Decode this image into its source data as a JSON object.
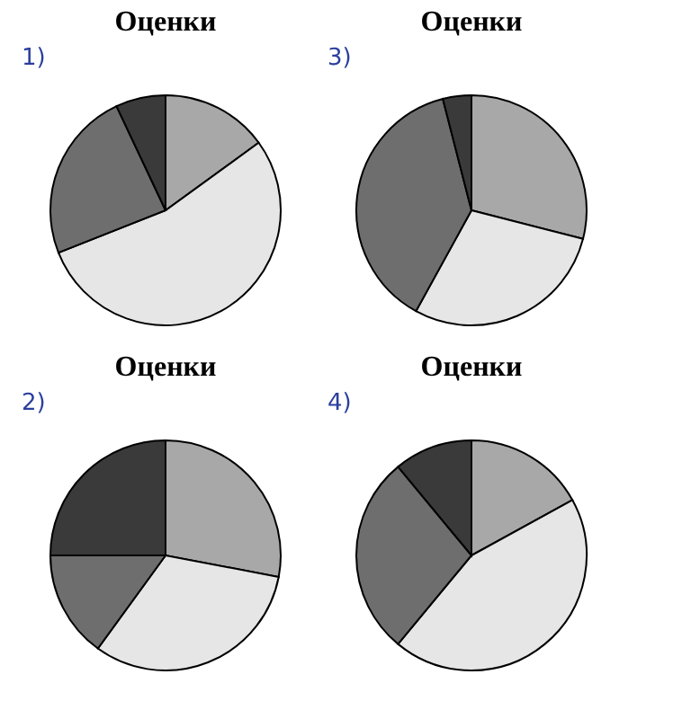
{
  "chart_data": [
    {
      "type": "pie",
      "title": "Оценки",
      "annotations": [
        "1)"
      ],
      "categories": [
        null,
        null,
        null,
        null
      ],
      "values": [
        15,
        54,
        24,
        7
      ],
      "colors": [
        "#a8a8a8",
        "#e6e6e6",
        "#6e6e6e",
        "#3a3a3a"
      ]
    },
    {
      "type": "pie",
      "title": "Оценки",
      "annotations": [
        "3)"
      ],
      "categories": [
        null,
        null,
        null,
        null
      ],
      "values": [
        29,
        29,
        38,
        4
      ],
      "colors": [
        "#a8a8a8",
        "#e6e6e6",
        "#6e6e6e",
        "#3a3a3a"
      ]
    },
    {
      "type": "pie",
      "title": "Оценки",
      "annotations": [
        "2)"
      ],
      "categories": [
        null,
        null,
        null,
        null
      ],
      "values": [
        28,
        32,
        15,
        25
      ],
      "colors": [
        "#a8a8a8",
        "#e6e6e6",
        "#6e6e6e",
        "#3a3a3a"
      ]
    },
    {
      "type": "pie",
      "title": "Оценки",
      "annotations": [
        "4)"
      ],
      "categories": [
        null,
        null,
        null,
        null
      ],
      "values": [
        17,
        44,
        28,
        11
      ],
      "colors": [
        "#a8a8a8",
        "#e6e6e6",
        "#6e6e6e",
        "#3a3a3a"
      ]
    }
  ]
}
